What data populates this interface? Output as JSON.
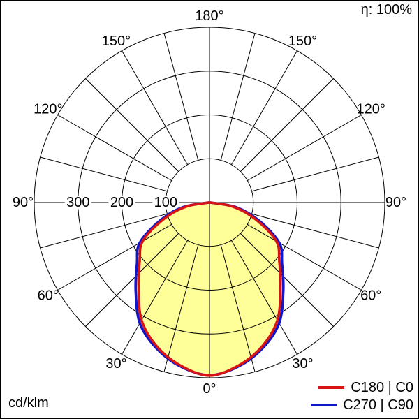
{
  "header": {
    "efficiency": "η: 100%"
  },
  "footer": {
    "unit": "cd/klm"
  },
  "legend": {
    "items": [
      {
        "label": "C180 | C0",
        "color": "#d81414"
      },
      {
        "label": "C270 | C90",
        "color": "#1414c8"
      }
    ]
  },
  "chart_data": {
    "type": "polar",
    "subtype": "luminous-intensity-distribution",
    "unit": "cd/klm",
    "efficiency_percent": 100,
    "fill_color": "#ffff99",
    "grid_color": "#000000",
    "r_axis": {
      "max": 400,
      "circle_values": [
        100,
        200,
        300,
        400
      ],
      "ticks": [
        {
          "value": 100,
          "label": "100"
        },
        {
          "value": 200,
          "label": "200"
        },
        {
          "value": 300,
          "label": "300"
        }
      ]
    },
    "angle_axis": {
      "spoke_step_deg": 15,
      "zero_at": "bottom",
      "labels": [
        {
          "deg": 0,
          "text": "0°"
        },
        {
          "deg": 30,
          "text": "30°"
        },
        {
          "deg": 60,
          "text": "60°"
        },
        {
          "deg": 90,
          "text": "90°"
        },
        {
          "deg": 120,
          "text": "120°"
        },
        {
          "deg": 150,
          "text": "150°"
        },
        {
          "deg": 180,
          "text": "180°"
        }
      ]
    },
    "series": [
      {
        "name": "C180 | C0",
        "plane": "C0-C180",
        "color": "#d81414",
        "angles_deg": [
          0,
          10,
          20,
          30,
          40,
          50,
          60,
          70,
          80,
          90
        ],
        "values_cd_per_klm": [
          395,
          378,
          350,
          310,
          252,
          208,
          176,
          112,
          55,
          2
        ]
      },
      {
        "name": "C270 | C90",
        "plane": "C90-C270",
        "color": "#1414c8",
        "angles_deg": [
          0,
          10,
          20,
          30,
          40,
          50,
          60,
          70,
          80,
          90
        ],
        "values_cd_per_klm": [
          394,
          380,
          354,
          318,
          262,
          216,
          184,
          120,
          62,
          2
        ]
      }
    ]
  }
}
